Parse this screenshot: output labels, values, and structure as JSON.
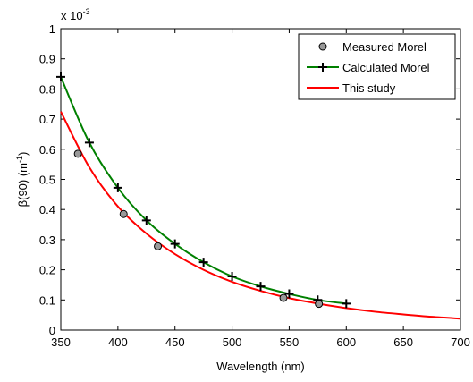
{
  "chart_data": {
    "type": "line",
    "title": "",
    "xlabel": "Wavelength (nm)",
    "ylabel_main": "β(90) (m",
    "ylabel_sup": "-1",
    "ylabel_close": ")",
    "y_multiplier": "x 10",
    "y_multiplier_exp": "-3",
    "xlim": [
      350,
      700
    ],
    "ylim": [
      0,
      1
    ],
    "xticks": [
      350,
      400,
      450,
      500,
      550,
      600,
      650,
      700
    ],
    "xtick_labels": [
      "350",
      "400",
      "450",
      "500",
      "550",
      "600",
      "650",
      "700"
    ],
    "yticks": [
      0,
      0.1,
      0.2,
      0.3,
      0.4,
      0.5,
      0.6,
      0.7,
      0.8,
      0.9,
      1
    ],
    "ytick_labels": [
      "0",
      "0.1",
      "0.2",
      "0.3",
      "0.4",
      "0.5",
      "0.6",
      "0.7",
      "0.8",
      "0.9",
      "1"
    ],
    "grid": false,
    "legend_position": "top-right",
    "series": [
      {
        "name": "Measured Morel",
        "style": "markers",
        "marker": "circle",
        "color": "#999999",
        "x": [
          365,
          405,
          435,
          545,
          576
        ],
        "y": [
          0.585,
          0.385,
          0.278,
          0.107,
          0.087
        ]
      },
      {
        "name": "Calculated Morel",
        "style": "line+markers",
        "marker": "plus",
        "color": "#008000",
        "x": [
          350,
          375,
          400,
          425,
          450,
          475,
          500,
          525,
          550,
          575,
          600
        ],
        "y": [
          0.84,
          0.622,
          0.472,
          0.364,
          0.286,
          0.225,
          0.178,
          0.145,
          0.12,
          0.1,
          0.088
        ]
      },
      {
        "name": "This study",
        "style": "line",
        "color": "#ff0000",
        "x": [
          350,
          375,
          400,
          425,
          450,
          475,
          500,
          525,
          550,
          575,
          600,
          625,
          650,
          675,
          700
        ],
        "y": [
          0.725,
          0.54,
          0.41,
          0.32,
          0.252,
          0.2,
          0.16,
          0.13,
          0.106,
          0.088,
          0.073,
          0.061,
          0.052,
          0.044,
          0.038
        ]
      }
    ]
  }
}
